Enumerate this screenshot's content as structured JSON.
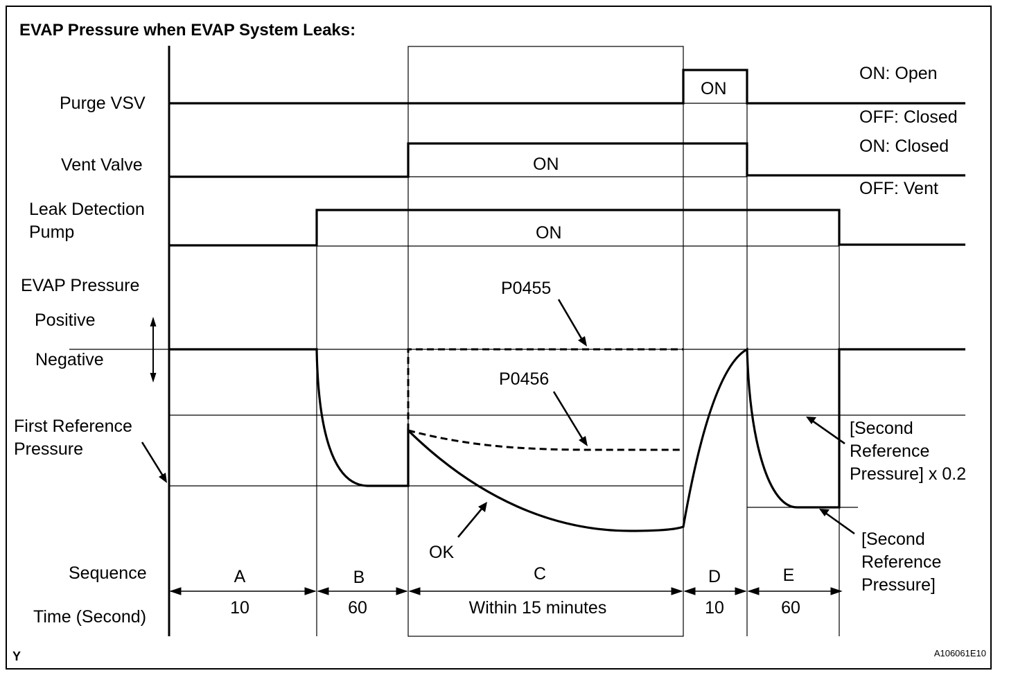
{
  "title": "EVAP Pressure when EVAP System Leaks:",
  "rows": {
    "purge_vsv": "Purge VSV",
    "vent_valve": "Vent Valve",
    "leak_pump_line1": "Leak Detection",
    "leak_pump_line2": "Pump",
    "evap_pressure": "EVAP Pressure",
    "positive": "Positive",
    "negative": "Negative",
    "first_ref_line1": "First Reference",
    "first_ref_line2": "Pressure",
    "sequence": "Sequence",
    "time": "Time (Second)"
  },
  "states": {
    "purge_on": "ON",
    "vent_on": "ON",
    "pump_on": "ON"
  },
  "legend": {
    "purge_on": "ON: Open",
    "purge_off": "OFF: Closed",
    "vent_on": "ON: Closed",
    "vent_off": "OFF: Vent"
  },
  "annotations": {
    "p0455": "P0455",
    "p0456": "P0456",
    "ok": "OK",
    "second_ref_x02_line1": "[Second",
    "second_ref_x02_line2": "Reference",
    "second_ref_x02_line3": "Pressure] x 0.2",
    "second_ref_line1": "[Second",
    "second_ref_line2": "Reference",
    "second_ref_line3": "Pressure]"
  },
  "sequence": [
    {
      "label": "A",
      "time": "10"
    },
    {
      "label": "B",
      "time": "60"
    },
    {
      "label": "C",
      "time": "Within 15 minutes"
    },
    {
      "label": "D",
      "time": "10"
    },
    {
      "label": "E",
      "time": "60"
    }
  ],
  "footer": {
    "left": "Y",
    "right": "A106061E10"
  }
}
